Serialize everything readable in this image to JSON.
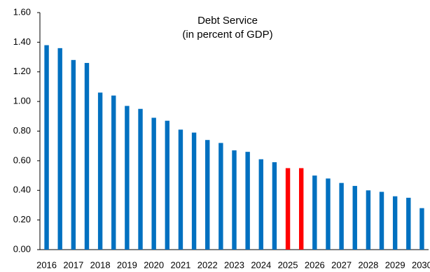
{
  "chart_data": {
    "type": "bar",
    "title": "Debt Service",
    "subtitle": "(in percent of GDP)",
    "categories": [
      "2016",
      null,
      "2017",
      null,
      "2018",
      null,
      "2019",
      null,
      "2020",
      null,
      "2021",
      null,
      "2022",
      null,
      "2023",
      null,
      "2024",
      null,
      "2025",
      null,
      "2026",
      null,
      "2027",
      null,
      "2028",
      null,
      "2029",
      null,
      "2030"
    ],
    "values": [
      1.38,
      1.36,
      1.28,
      1.26,
      1.06,
      1.04,
      0.97,
      0.95,
      0.89,
      0.87,
      0.81,
      0.79,
      0.74,
      0.72,
      0.67,
      0.66,
      0.61,
      0.59,
      0.55,
      0.55,
      0.5,
      0.48,
      0.45,
      0.43,
      0.4,
      0.39,
      0.36,
      0.35,
      0.28
    ],
    "colors": [
      "#0070c0",
      "#0070c0",
      "#0070c0",
      "#0070c0",
      "#0070c0",
      "#0070c0",
      "#0070c0",
      "#0070c0",
      "#0070c0",
      "#0070c0",
      "#0070c0",
      "#0070c0",
      "#0070c0",
      "#0070c0",
      "#0070c0",
      "#0070c0",
      "#0070c0",
      "#0070c0",
      "#ff0000",
      "#ff0000",
      "#0070c0",
      "#0070c0",
      "#0070c0",
      "#0070c0",
      "#0070c0",
      "#0070c0",
      "#0070c0",
      "#0070c0",
      "#0070c0"
    ],
    "ylim": [
      0,
      1.6
    ],
    "yticks": [
      {
        "value": 0,
        "label": "0.00"
      },
      {
        "value": 0.2,
        "label": "0.20"
      },
      {
        "value": 0.4,
        "label": "0.40"
      },
      {
        "value": 0.6,
        "label": "0.60"
      },
      {
        "value": 0.8,
        "label": "0.80"
      },
      {
        "value": 1.0,
        "label": "1.00"
      },
      {
        "value": 1.2,
        "label": "1.20"
      },
      {
        "value": 1.4,
        "label": "1.40"
      },
      {
        "value": 1.6,
        "label": "1.60"
      }
    ],
    "grid": false
  }
}
